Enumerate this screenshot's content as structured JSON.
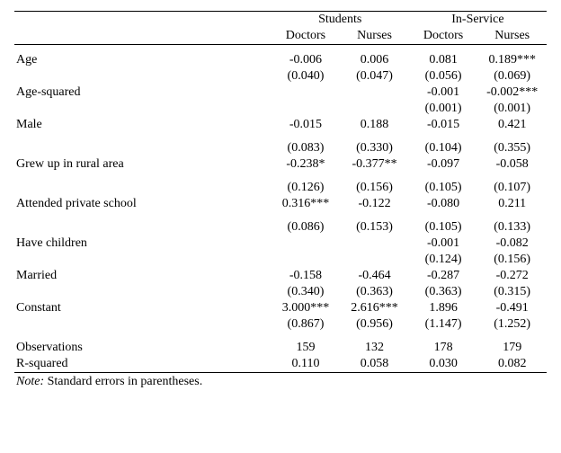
{
  "type": "table",
  "background_color": "#ffffff",
  "text_color": "#000000",
  "border_color": "#000000",
  "font_family": "Times New Roman",
  "font_size_pt": 11,
  "groups": [
    "Students",
    "In-Service"
  ],
  "subcols": [
    "Doctors",
    "Nurses",
    "Doctors",
    "Nurses"
  ],
  "rows": [
    {
      "label": "Age",
      "est": [
        "-0.006",
        "0.006",
        "0.081",
        "0.189***"
      ],
      "se": [
        "(0.040)",
        "(0.047)",
        "(0.056)",
        "(0.069)"
      ]
    },
    {
      "label": "Age-squared",
      "est": [
        "",
        "",
        "-0.001",
        "-0.002***"
      ],
      "se": [
        "",
        "",
        "(0.001)",
        "(0.001)"
      ]
    },
    {
      "label": "Male",
      "est": [
        "-0.015",
        "0.188",
        "-0.015",
        "0.421"
      ],
      "se": [
        "(0.083)",
        "(0.330)",
        "(0.104)",
        "(0.355)"
      ],
      "gap_before_se": true
    },
    {
      "label": "Grew up in rural area",
      "est": [
        "-0.238*",
        "-0.377**",
        "-0.097",
        "-0.058"
      ],
      "se": [
        "(0.126)",
        "(0.156)",
        "(0.105)",
        "(0.107)"
      ],
      "gap_before_se": true
    },
    {
      "label": "Attended private school",
      "est": [
        "0.316***",
        "-0.122",
        "-0.080",
        "0.211"
      ],
      "se": [
        "(0.086)",
        "(0.153)",
        "(0.105)",
        "(0.133)"
      ],
      "gap_before_se": true
    },
    {
      "label": "Have children",
      "est": [
        "",
        "",
        "-0.001",
        "-0.082"
      ],
      "se": [
        "",
        "",
        "(0.124)",
        "(0.156)"
      ]
    },
    {
      "label": "Married",
      "est": [
        "-0.158",
        "-0.464",
        "-0.287",
        "-0.272"
      ],
      "se": [
        "(0.340)",
        "(0.363)",
        "(0.363)",
        "(0.315)"
      ]
    },
    {
      "label": "Constant",
      "est": [
        "3.000***",
        "2.616***",
        "1.896",
        "-0.491"
      ],
      "se": [
        "(0.867)",
        "(0.956)",
        "(1.147)",
        "(1.252)"
      ]
    }
  ],
  "summary": [
    {
      "label": "Observations",
      "vals": [
        "159",
        "132",
        "178",
        "179"
      ]
    },
    {
      "label": "R-squared",
      "vals": [
        "0.110",
        "0.058",
        "0.030",
        "0.082"
      ]
    }
  ],
  "note_label": "Note:",
  "note_text": " Standard errors in parentheses."
}
